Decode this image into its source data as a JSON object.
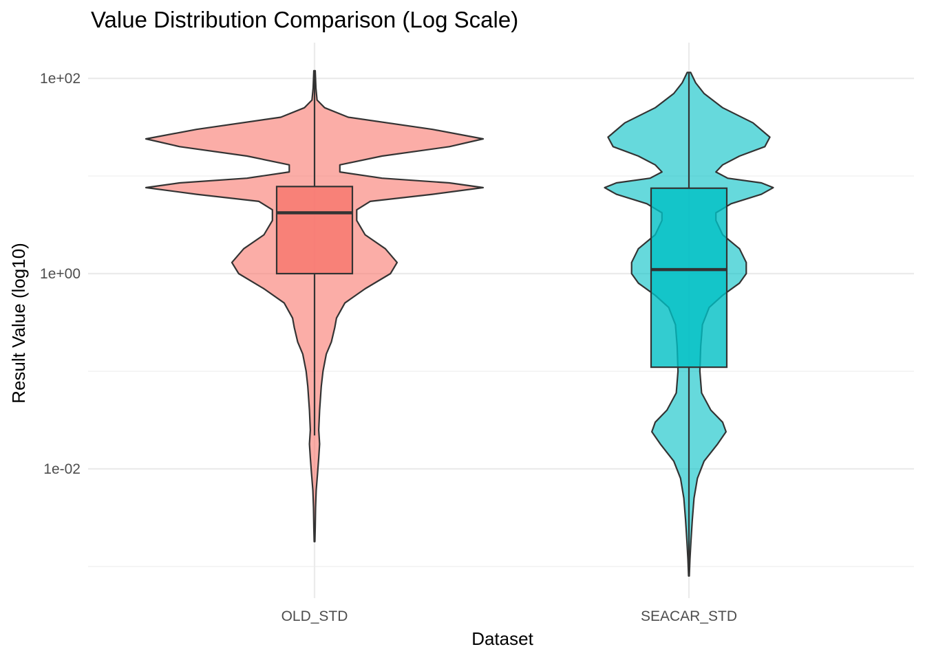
{
  "chart_data": {
    "type": "violin",
    "title": "Value Distribution Comparison (Log Scale)",
    "xlabel": "Dataset",
    "ylabel": "Result Value (log10)",
    "y_scale": "log10",
    "ylim": [
      0.00055,
      200
    ],
    "y_ticks": [
      {
        "value": 0.01,
        "label": "1e-02"
      },
      {
        "value": 1,
        "label": "1e+00"
      },
      {
        "value": 100,
        "label": "1e+02"
      }
    ],
    "y_minor_ticks": [
      0.001,
      0.1,
      10
    ],
    "grid": true,
    "legend": "none",
    "categories": [
      "OLD_STD",
      "SEACAR_STD"
    ],
    "series": [
      {
        "category": "OLD_STD",
        "color": "#F8766D",
        "box": {
          "lower_whisker": 0.022,
          "q1": 1.0,
          "median": 4.2,
          "q3": 7.8,
          "upper_whisker": 120
        },
        "violin": {
          "min": 0.0018,
          "max": 120,
          "profile": [
            [
              120,
              0.004
            ],
            [
              80,
              0.008
            ],
            [
              60,
              0.015
            ],
            [
              50,
              0.06
            ],
            [
              40,
              0.2
            ],
            [
              30,
              0.7
            ],
            [
              24,
              1.0
            ],
            [
              20,
              0.8
            ],
            [
              16,
              0.4
            ],
            [
              13,
              0.15
            ],
            [
              11,
              0.15
            ],
            [
              9.5,
              0.4
            ],
            [
              8.5,
              0.8
            ],
            [
              7.6,
              1.0
            ],
            [
              6.5,
              0.7
            ],
            [
              5.5,
              0.33
            ],
            [
              4.5,
              0.25
            ],
            [
              3.5,
              0.25
            ],
            [
              2.5,
              0.3
            ],
            [
              1.8,
              0.42
            ],
            [
              1.3,
              0.49
            ],
            [
              1.0,
              0.45
            ],
            [
              0.7,
              0.3
            ],
            [
              0.5,
              0.18
            ],
            [
              0.35,
              0.13
            ],
            [
              0.28,
              0.12
            ],
            [
              0.2,
              0.1
            ],
            [
              0.15,
              0.07
            ],
            [
              0.1,
              0.05
            ],
            [
              0.07,
              0.04
            ],
            [
              0.04,
              0.03
            ],
            [
              0.025,
              0.025
            ],
            [
              0.018,
              0.03
            ],
            [
              0.013,
              0.025
            ],
            [
              0.009,
              0.018
            ],
            [
              0.006,
              0.01
            ],
            [
              0.004,
              0.006
            ],
            [
              0.0025,
              0.004
            ],
            [
              0.0018,
              0.002
            ]
          ]
        }
      },
      {
        "category": "SEACAR_STD",
        "color": "#00BFC4",
        "box": {
          "lower_whisker": 0.0008,
          "q1": 0.11,
          "median": 1.1,
          "q3": 7.5,
          "upper_whisker": 115
        },
        "violin": {
          "min": 0.0008,
          "max": 115,
          "profile": [
            [
              115,
              0.01
            ],
            [
              90,
              0.04
            ],
            [
              70,
              0.09
            ],
            [
              50,
              0.2
            ],
            [
              35,
              0.38
            ],
            [
              25,
              0.48
            ],
            [
              20,
              0.45
            ],
            [
              16,
              0.3
            ],
            [
              13,
              0.2
            ],
            [
              11,
              0.16
            ],
            [
              9.5,
              0.23
            ],
            [
              8.5,
              0.43
            ],
            [
              7.6,
              0.5
            ],
            [
              6.5,
              0.43
            ],
            [
              5.2,
              0.25
            ],
            [
              4.2,
              0.16
            ],
            [
              3.5,
              0.16
            ],
            [
              2.5,
              0.2
            ],
            [
              1.8,
              0.3
            ],
            [
              1.3,
              0.34
            ],
            [
              1.0,
              0.34
            ],
            [
              0.8,
              0.3
            ],
            [
              0.6,
              0.2
            ],
            [
              0.45,
              0.12
            ],
            [
              0.3,
              0.08
            ],
            [
              0.18,
              0.07
            ],
            [
              0.1,
              0.065
            ],
            [
              0.06,
              0.075
            ],
            [
              0.04,
              0.13
            ],
            [
              0.03,
              0.2
            ],
            [
              0.024,
              0.22
            ],
            [
              0.018,
              0.17
            ],
            [
              0.012,
              0.09
            ],
            [
              0.008,
              0.05
            ],
            [
              0.005,
              0.03
            ],
            [
              0.003,
              0.02
            ],
            [
              0.0018,
              0.012
            ],
            [
              0.0012,
              0.006
            ],
            [
              0.0008,
              0.002
            ]
          ]
        }
      }
    ]
  }
}
